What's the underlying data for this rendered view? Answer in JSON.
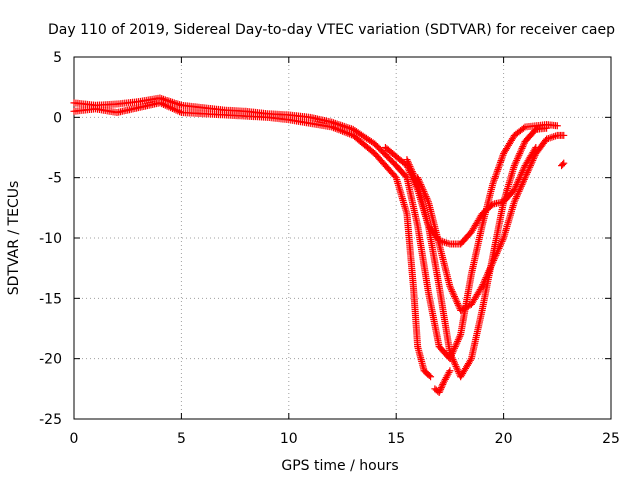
{
  "chart_data": {
    "type": "scatter",
    "title": "Day 110 of 2019, Sidereal Day-to-day VTEC variation (SDTVAR) for receiver caep",
    "xlabel": "GPS time / hours",
    "ylabel": "SDTVAR / TECUs",
    "xlim": [
      0,
      25
    ],
    "ylim": [
      -25,
      5
    ],
    "xticks": [
      "0",
      "5",
      "10",
      "15",
      "20",
      "25"
    ],
    "yticks": [
      "5",
      "0",
      "-5",
      "-10",
      "-15",
      "-20",
      "-25"
    ],
    "grid": true,
    "marker": "+",
    "series": [
      {
        "name": "track-a",
        "color": "#ff0000",
        "points": [
          [
            0,
            1.2
          ],
          [
            1,
            1.0
          ],
          [
            2,
            1.1
          ],
          [
            3,
            1.3
          ],
          [
            4,
            1.6
          ],
          [
            5,
            1.0
          ],
          [
            6,
            0.8
          ],
          [
            7,
            0.6
          ],
          [
            8,
            0.5
          ],
          [
            9,
            0.3
          ],
          [
            10,
            0.2
          ],
          [
            11,
            0.0
          ],
          [
            12,
            -0.4
          ],
          [
            13,
            -1.0
          ],
          [
            14,
            -2.2
          ],
          [
            15,
            -4.0
          ],
          [
            15.5,
            -5.0
          ],
          [
            16,
            -9.0
          ],
          [
            16.5,
            -14.5
          ],
          [
            17,
            -19.0
          ],
          [
            17.5,
            -20.0
          ],
          [
            18,
            -18.0
          ],
          [
            18.5,
            -13.0
          ],
          [
            19,
            -9.0
          ],
          [
            19.5,
            -5.5
          ],
          [
            20,
            -3.0
          ],
          [
            20.5,
            -1.5
          ],
          [
            21,
            -0.8
          ],
          [
            22,
            -0.6
          ],
          [
            22.5,
            -0.7
          ]
        ]
      },
      {
        "name": "track-b",
        "color": "#ff0000",
        "points": [
          [
            0,
            0.5
          ],
          [
            1,
            0.7
          ],
          [
            2,
            0.4
          ],
          [
            3,
            0.8
          ],
          [
            4,
            1.2
          ],
          [
            5,
            0.4
          ],
          [
            6,
            0.3
          ],
          [
            7,
            0.2
          ],
          [
            8,
            0.1
          ],
          [
            9,
            0.0
          ],
          [
            10,
            -0.2
          ],
          [
            11,
            -0.5
          ],
          [
            12,
            -0.8
          ],
          [
            13,
            -1.5
          ],
          [
            14,
            -3.0
          ],
          [
            15,
            -5.0
          ],
          [
            15.5,
            -8.0
          ],
          [
            15.8,
            -14.0
          ],
          [
            16,
            -19.0
          ],
          [
            16.3,
            -21.0
          ],
          [
            16.6,
            -21.5
          ]
        ]
      },
      {
        "name": "track-c",
        "color": "#ff0000",
        "points": [
          [
            14.5,
            -2.5
          ],
          [
            15.5,
            -4.0
          ],
          [
            16,
            -6.0
          ],
          [
            16.5,
            -9.0
          ],
          [
            17,
            -14.0
          ],
          [
            17.5,
            -19.5
          ],
          [
            18,
            -21.5
          ],
          [
            18.5,
            -20.0
          ],
          [
            19,
            -16.0
          ],
          [
            19.5,
            -11.5
          ],
          [
            20,
            -7.0
          ],
          [
            20.5,
            -4.0
          ],
          [
            21,
            -2.0
          ],
          [
            21.5,
            -1.0
          ],
          [
            22,
            -0.9
          ]
        ]
      },
      {
        "name": "track-d",
        "color": "#ff0000",
        "points": [
          [
            16,
            -5.0
          ],
          [
            16.5,
            -7.0
          ],
          [
            17,
            -10.5
          ],
          [
            17.5,
            -14.0
          ],
          [
            18,
            -16.0
          ],
          [
            18.5,
            -15.5
          ],
          [
            19,
            -14.0
          ],
          [
            19.5,
            -12.0
          ],
          [
            20,
            -10.0
          ],
          [
            20.5,
            -7.0
          ],
          [
            21,
            -5.0
          ],
          [
            21.5,
            -3.0
          ],
          [
            22,
            -1.8
          ],
          [
            22.5,
            -1.5
          ],
          [
            22.8,
            -1.5
          ]
        ]
      },
      {
        "name": "track-e",
        "color": "#ff0000",
        "points": [
          [
            15.5,
            -3.5
          ],
          [
            16,
            -5.5
          ],
          [
            16.5,
            -9.0
          ],
          [
            17,
            -10.2
          ],
          [
            17.5,
            -10.5
          ],
          [
            18,
            -10.5
          ],
          [
            18.5,
            -9.5
          ],
          [
            19,
            -8.0
          ],
          [
            19.5,
            -7.2
          ],
          [
            20,
            -7.0
          ],
          [
            20.5,
            -6.0
          ],
          [
            21,
            -4.0
          ],
          [
            21.5,
            -2.5
          ]
        ]
      },
      {
        "name": "track-f",
        "color": "#ff0000",
        "points": [
          [
            16.8,
            -22.5
          ],
          [
            17,
            -22.8
          ],
          [
            17.2,
            -22.0
          ],
          [
            17.5,
            -21.0
          ]
        ]
      },
      {
        "name": "track-g",
        "color": "#ff0000",
        "points": [
          [
            22.7,
            -4.0
          ],
          [
            22.8,
            -3.8
          ]
        ]
      }
    ]
  }
}
